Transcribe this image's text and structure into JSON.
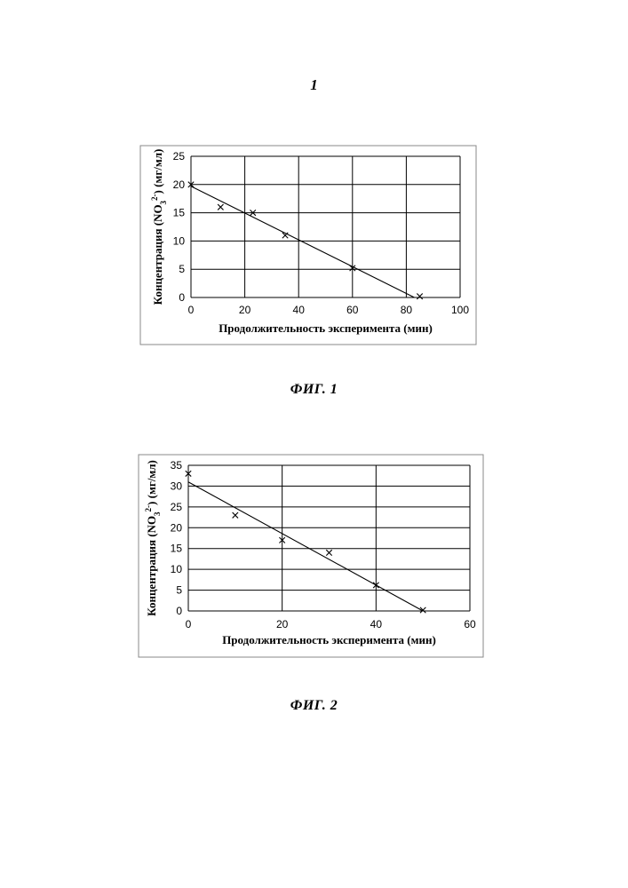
{
  "page_number": "1",
  "captions": [
    "ФИГ. 1",
    "ФИГ. 2"
  ],
  "chart_data": [
    {
      "type": "scatter",
      "xlabel": "Продолжительность эксперимента (мин)",
      "ylabel_parts": [
        "Концентрация (NO",
        "3",
        "2-",
        ") (мг/мл)"
      ],
      "xlim": [
        0,
        100
      ],
      "ylim": [
        0,
        25
      ],
      "xticks": [
        0,
        20,
        40,
        60,
        80,
        100
      ],
      "yticks": [
        0,
        5,
        10,
        15,
        20,
        25
      ],
      "grid": true,
      "marker": "x",
      "points": [
        {
          "x": 0,
          "y": 20
        },
        {
          "x": 11,
          "y": 16
        },
        {
          "x": 23,
          "y": 15
        },
        {
          "x": 35,
          "y": 11
        },
        {
          "x": 60,
          "y": 5.2
        },
        {
          "x": 85,
          "y": 0.2
        }
      ],
      "trendline": {
        "x": [
          0,
          83
        ],
        "y": [
          19.7,
          0
        ]
      }
    },
    {
      "type": "scatter",
      "xlabel": "Продолжительность эксперимента (мин)",
      "ylabel_parts": [
        "Концентрация (NO",
        "3",
        "2-",
        ") (мг/мл)"
      ],
      "xlim": [
        0,
        60
      ],
      "ylim": [
        0,
        35
      ],
      "xticks": [
        0,
        20,
        40,
        60
      ],
      "yticks": [
        0,
        5,
        10,
        15,
        20,
        25,
        30,
        35
      ],
      "grid": true,
      "marker": "x",
      "points": [
        {
          "x": 0,
          "y": 33
        },
        {
          "x": 10,
          "y": 23
        },
        {
          "x": 20,
          "y": 17
        },
        {
          "x": 30,
          "y": 14
        },
        {
          "x": 40,
          "y": 6.2
        },
        {
          "x": 50,
          "y": 0.2
        }
      ],
      "trendline": {
        "x": [
          0,
          50
        ],
        "y": [
          31,
          0
        ]
      }
    }
  ]
}
